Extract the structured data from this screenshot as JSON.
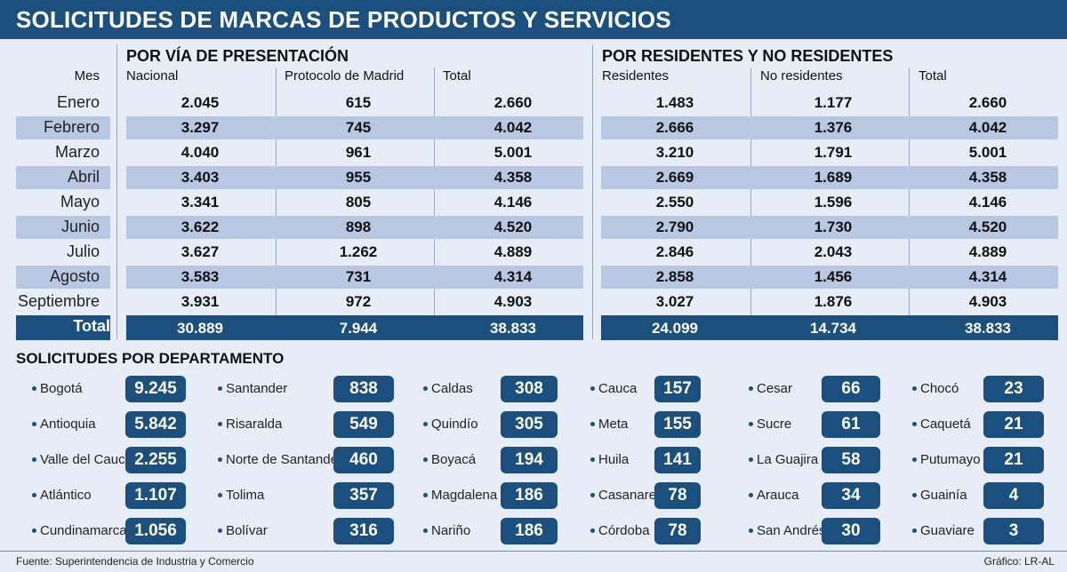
{
  "title": "SOLICITUDES DE MARCAS DE PRODUCTOS Y SERVICIOS",
  "chart_data": [
    {
      "type": "table",
      "title": "POR VÍA DE PRESENTACIÓN",
      "row_header": "Mes",
      "columns": [
        "Nacional",
        "Protocolo de Madrid",
        "Total"
      ],
      "rows": [
        "Enero",
        "Febrero",
        "Marzo",
        "Abril",
        "Mayo",
        "Junio",
        "Julio",
        "Agosto",
        "Septiembre"
      ],
      "values": [
        [
          "2.045",
          "615",
          "2.660"
        ],
        [
          "3.297",
          "745",
          "4.042"
        ],
        [
          "4.040",
          "961",
          "5.001"
        ],
        [
          "3.403",
          "955",
          "4.358"
        ],
        [
          "3.341",
          "805",
          "4.146"
        ],
        [
          "3.622",
          "898",
          "4.520"
        ],
        [
          "3.627",
          "1.262",
          "4.889"
        ],
        [
          "3.583",
          "731",
          "4.314"
        ],
        [
          "3.931",
          "972",
          "4.903"
        ]
      ],
      "total_label": "Total",
      "totals": [
        "30.889",
        "7.944",
        "38.833"
      ]
    },
    {
      "type": "table",
      "title": "POR RESIDENTES Y NO RESIDENTES",
      "columns": [
        "Residentes",
        "No residentes",
        "Total"
      ],
      "values": [
        [
          "1.483",
          "1.177",
          "2.660"
        ],
        [
          "2.666",
          "1.376",
          "4.042"
        ],
        [
          "3.210",
          "1.791",
          "5.001"
        ],
        [
          "2.669",
          "1.689",
          "4.358"
        ],
        [
          "2.550",
          "1.596",
          "4.146"
        ],
        [
          "2.790",
          "1.730",
          "4.520"
        ],
        [
          "2.846",
          "2.043",
          "4.889"
        ],
        [
          "2.858",
          "1.456",
          "4.314"
        ],
        [
          "3.027",
          "1.876",
          "4.903"
        ]
      ],
      "totals": [
        "24.099",
        "14.734",
        "38.833"
      ]
    },
    {
      "type": "table",
      "title": "SOLICITUDES POR DEPARTAMENTO",
      "groups": [
        [
          {
            "name": "Bogotá",
            "value": "9.245"
          },
          {
            "name": "Antioquia",
            "value": "5.842"
          },
          {
            "name": "Valle del Cauca",
            "value": "2.255"
          },
          {
            "name": "Atlántico",
            "value": "1.107"
          },
          {
            "name": "Cundinamarca",
            "value": "1.056"
          }
        ],
        [
          {
            "name": "Santander",
            "value": "838"
          },
          {
            "name": "Risaralda",
            "value": "549"
          },
          {
            "name": "Norte de Santander",
            "value": "460"
          },
          {
            "name": "Tolima",
            "value": "357"
          },
          {
            "name": "Bolívar",
            "value": "316"
          }
        ],
        [
          {
            "name": "Caldas",
            "value": "308"
          },
          {
            "name": "Quindío",
            "value": "305"
          },
          {
            "name": "Boyacá",
            "value": "194"
          },
          {
            "name": "Magdalena",
            "value": "186"
          },
          {
            "name": "Nariño",
            "value": "186"
          }
        ],
        [
          {
            "name": "Cauca",
            "value": "157"
          },
          {
            "name": "Meta",
            "value": "155"
          },
          {
            "name": "Huila",
            "value": "141"
          },
          {
            "name": "Casanare",
            "value": "78"
          },
          {
            "name": "Córdoba",
            "value": "78"
          }
        ],
        [
          {
            "name": "Cesar",
            "value": "66"
          },
          {
            "name": "Sucre",
            "value": "61"
          },
          {
            "name": "La Guajira",
            "value": "58"
          },
          {
            "name": "Arauca",
            "value": "34"
          },
          {
            "name": "San Andrés",
            "value": "30"
          }
        ],
        [
          {
            "name": "Chocó",
            "value": "23"
          },
          {
            "name": "Caquetá",
            "value": "21"
          },
          {
            "name": "Putumayo",
            "value": "21"
          },
          {
            "name": "Guainía",
            "value": "4"
          },
          {
            "name": "Guaviare",
            "value": "3"
          }
        ]
      ]
    }
  ],
  "footer": {
    "source": "Fuente: Superintendencia de Industria y Comercio",
    "credit": "Gráfico: LR-AL"
  },
  "colors": {
    "accent": "#1b4f7d",
    "band": "#b9c8e2",
    "background": "#e6edf7"
  }
}
